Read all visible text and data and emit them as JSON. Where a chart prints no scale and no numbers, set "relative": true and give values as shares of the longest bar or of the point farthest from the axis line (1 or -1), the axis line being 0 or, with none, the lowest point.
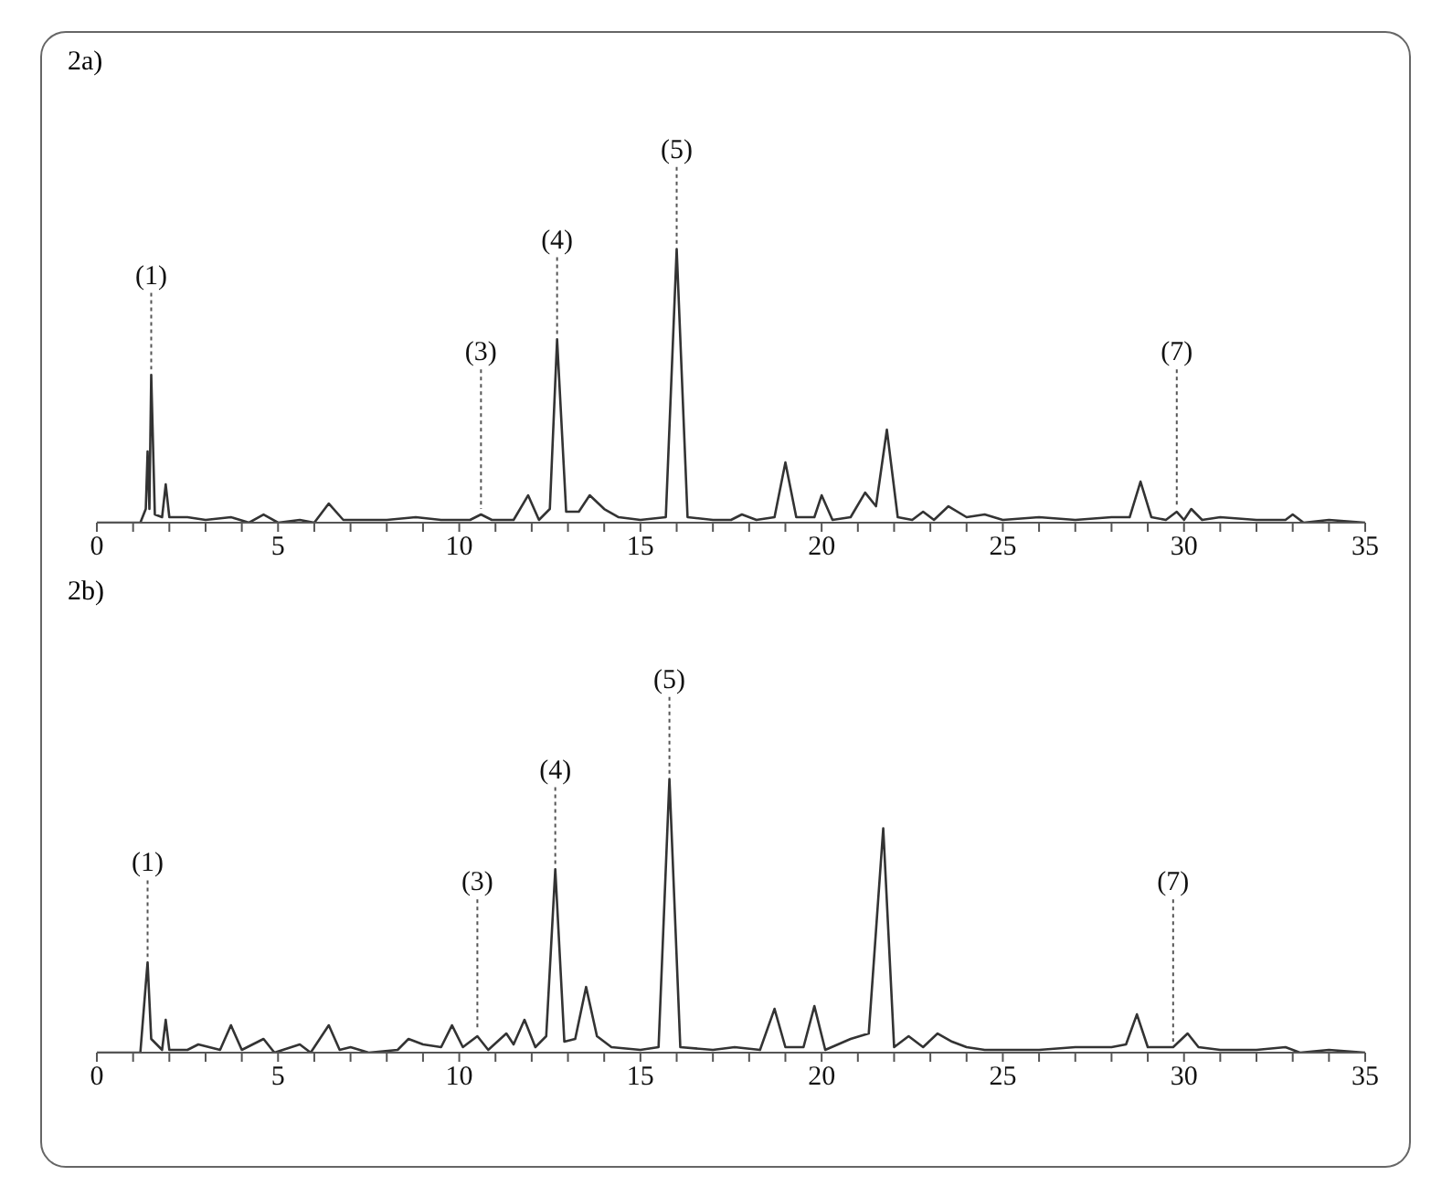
{
  "chart_data": [
    {
      "type": "line",
      "title": "2a)",
      "relative": true,
      "xlim": [
        0,
        35
      ],
      "xticks": [
        0,
        {
          "value": 1,
          "label": null
        },
        {
          "value": 2,
          "label": null
        },
        {
          "value": 3,
          "label": null
        },
        {
          "value": 4,
          "label": null
        },
        5,
        {
          "value": 6,
          "label": null
        },
        {
          "value": 7,
          "label": null
        },
        {
          "value": 8,
          "label": null
        },
        {
          "value": 9,
          "label": null
        },
        10,
        {
          "value": 11,
          "label": null
        },
        {
          "value": 12,
          "label": null
        },
        {
          "value": 13,
          "label": null
        },
        {
          "value": 14,
          "label": null
        },
        15,
        {
          "value": 16,
          "label": null
        },
        {
          "value": 17,
          "label": null
        },
        {
          "value": 18,
          "label": null
        },
        {
          "value": 19,
          "label": null
        },
        20,
        {
          "value": 21,
          "label": null
        },
        {
          "value": 22,
          "label": null
        },
        {
          "value": 23,
          "label": null
        },
        {
          "value": 24,
          "label": null
        },
        25,
        {
          "value": 26,
          "label": null
        },
        {
          "value": 27,
          "label": null
        },
        {
          "value": 28,
          "label": null
        },
        {
          "value": 29,
          "label": null
        },
        30,
        {
          "value": 31,
          "label": null
        },
        {
          "value": 32,
          "label": null
        },
        {
          "value": 33,
          "label": null
        },
        {
          "value": 34,
          "label": null
        },
        35
      ],
      "tick_labels": "x",
      "grid": false,
      "legend": false,
      "marker": "none",
      "line_style": "solid",
      "annotations": [
        {
          "text": "(1)",
          "x": 1.5,
          "y": 0.54
        },
        {
          "text": "(3)",
          "x": 10.6,
          "y": 0.03
        },
        {
          "text": "(4)",
          "x": 12.7,
          "y": 0.67
        },
        {
          "text": "(5)",
          "x": 16.0,
          "y": 1.0
        },
        {
          "text": "(7)",
          "x": 29.8,
          "y": 0.04
        }
      ],
      "series": [
        {
          "color": "#333333",
          "x": [
            0,
            1.2,
            1.35,
            1.4,
            1.45,
            1.5,
            1.6,
            1.8,
            1.9,
            2.0,
            2.5,
            3.0,
            3.7,
            4.2,
            4.6,
            5.0,
            5.6,
            6.0,
            6.4,
            6.8,
            8.0,
            8.8,
            9.5,
            10.3,
            10.6,
            10.9,
            11.5,
            11.9,
            12.2,
            12.5,
            12.7,
            12.95,
            13.3,
            13.6,
            14.0,
            14.4,
            15.0,
            15.7,
            16.0,
            16.3,
            17.0,
            17.5,
            17.8,
            18.2,
            18.7,
            19.0,
            19.3,
            19.8,
            20.0,
            20.3,
            20.8,
            21.2,
            21.5,
            21.8,
            22.1,
            22.5,
            22.8,
            23.1,
            23.5,
            24.0,
            24.5,
            25.0,
            26,
            27,
            28,
            28.5,
            28.8,
            29.1,
            29.5,
            29.8,
            30.0,
            30.2,
            30.5,
            31,
            32,
            32.8,
            33.0,
            33.3,
            34,
            35
          ],
          "values": [
            0,
            0,
            0.05,
            0.26,
            0.05,
            0.54,
            0.03,
            0.02,
            0.14,
            0.02,
            0.02,
            0.01,
            0.02,
            0,
            0.03,
            0,
            0.01,
            0,
            0.07,
            0.01,
            0.01,
            0.02,
            0.01,
            0.01,
            0.03,
            0.01,
            0.01,
            0.1,
            0.01,
            0.05,
            0.67,
            0.04,
            0.04,
            0.1,
            0.05,
            0.02,
            0.01,
            0.02,
            1.0,
            0.02,
            0.01,
            0.01,
            0.03,
            0.01,
            0.02,
            0.22,
            0.02,
            0.02,
            0.1,
            0.01,
            0.02,
            0.11,
            0.06,
            0.34,
            0.02,
            0.01,
            0.04,
            0.01,
            0.06,
            0.02,
            0.03,
            0.01,
            0.02,
            0.01,
            0.02,
            0.02,
            0.15,
            0.02,
            0.01,
            0.04,
            0.01,
            0.05,
            0.01,
            0.02,
            0.01,
            0.01,
            0.03,
            0,
            0.01,
            0
          ]
        }
      ]
    },
    {
      "type": "line",
      "title": "2b)",
      "relative": true,
      "xlim": [
        0,
        35
      ],
      "xticks": [
        0,
        {
          "value": 1,
          "label": null
        },
        {
          "value": 2,
          "label": null
        },
        {
          "value": 3,
          "label": null
        },
        {
          "value": 4,
          "label": null
        },
        5,
        {
          "value": 6,
          "label": null
        },
        {
          "value": 7,
          "label": null
        },
        {
          "value": 8,
          "label": null
        },
        {
          "value": 9,
          "label": null
        },
        10,
        {
          "value": 11,
          "label": null
        },
        {
          "value": 12,
          "label": null
        },
        {
          "value": 13,
          "label": null
        },
        {
          "value": 14,
          "label": null
        },
        15,
        {
          "value": 16,
          "label": null
        },
        {
          "value": 17,
          "label": null
        },
        {
          "value": 18,
          "label": null
        },
        {
          "value": 19,
          "label": null
        },
        20,
        {
          "value": 21,
          "label": null
        },
        {
          "value": 22,
          "label": null
        },
        {
          "value": 23,
          "label": null
        },
        {
          "value": 24,
          "label": null
        },
        25,
        {
          "value": 26,
          "label": null
        },
        {
          "value": 27,
          "label": null
        },
        {
          "value": 28,
          "label": null
        },
        {
          "value": 29,
          "label": null
        },
        30,
        {
          "value": 31,
          "label": null
        },
        {
          "value": 32,
          "label": null
        },
        {
          "value": 33,
          "label": null
        },
        {
          "value": 34,
          "label": null
        },
        35
      ],
      "tick_labels": "x",
      "grid": false,
      "legend": false,
      "marker": "none",
      "line_style": "solid",
      "annotations": [
        {
          "text": "(1)",
          "x": 1.4,
          "y": 0.33
        },
        {
          "text": "(3)",
          "x": 10.5,
          "y": 0.06
        },
        {
          "text": "(4)",
          "x": 12.65,
          "y": 0.67
        },
        {
          "text": "(5)",
          "x": 15.8,
          "y": 1.0
        },
        {
          "text": "(7)",
          "x": 29.7,
          "y": 0.02
        }
      ],
      "series": [
        {
          "color": "#333333",
          "x": [
            0,
            1.2,
            1.35,
            1.4,
            1.5,
            1.8,
            1.9,
            2.0,
            2.5,
            2.8,
            3.1,
            3.4,
            3.7,
            4.0,
            4.6,
            4.9,
            5.6,
            5.9,
            6.4,
            6.7,
            7.0,
            7.5,
            8.3,
            8.6,
            9.0,
            9.5,
            9.8,
            10.1,
            10.5,
            10.8,
            11.3,
            11.5,
            11.8,
            12.1,
            12.4,
            12.65,
            12.9,
            13.2,
            13.5,
            13.8,
            14.2,
            15.0,
            15.5,
            15.8,
            16.1,
            17,
            17.6,
            18.3,
            18.7,
            19.0,
            19.5,
            19.8,
            20.1,
            20.8,
            21.3,
            21.7,
            22.0,
            22.4,
            22.8,
            23.2,
            23.6,
            24,
            24.5,
            25,
            26,
            27,
            28,
            28.4,
            28.7,
            29.0,
            29.7,
            30.1,
            30.4,
            31,
            32,
            32.8,
            33.2,
            34,
            35
          ],
          "values": [
            0,
            0,
            0.25,
            0.33,
            0.05,
            0.01,
            0.12,
            0.01,
            0.01,
            0.03,
            0.02,
            0.01,
            0.1,
            0.01,
            0.05,
            0,
            0.03,
            0,
            0.1,
            0.01,
            0.02,
            0,
            0.01,
            0.05,
            0.03,
            0.02,
            0.1,
            0.02,
            0.06,
            0.01,
            0.07,
            0.03,
            0.12,
            0.02,
            0.06,
            0.67,
            0.04,
            0.05,
            0.24,
            0.06,
            0.02,
            0.01,
            0.02,
            1.0,
            0.02,
            0.01,
            0.02,
            0.01,
            0.16,
            0.02,
            0.02,
            0.17,
            0.01,
            0.05,
            0.07,
            0.82,
            0.02,
            0.06,
            0.02,
            0.07,
            0.04,
            0.02,
            0.01,
            0.01,
            0.01,
            0.02,
            0.02,
            0.03,
            0.14,
            0.02,
            0.02,
            0.07,
            0.02,
            0.01,
            0.01,
            0.02,
            0,
            0.01,
            0
          ]
        }
      ]
    }
  ]
}
